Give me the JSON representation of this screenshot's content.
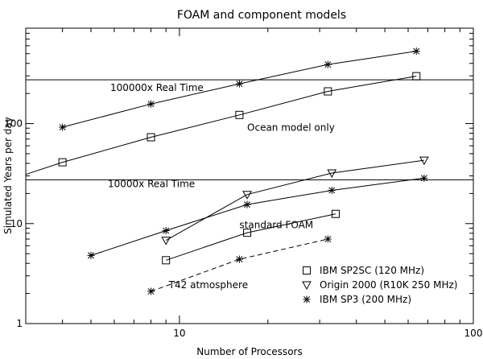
{
  "chart_data": {
    "type": "line",
    "title": "FOAM and component models",
    "xlabel": "Number of Processors",
    "ylabel": "Simulated Years per day",
    "xscale": "log",
    "yscale": "log",
    "xlim": [
      3,
      100
    ],
    "ylim": [
      1,
      900
    ],
    "x_ticks": [
      10,
      100
    ],
    "x_tick_labels": [
      "10",
      "100"
    ],
    "y_ticks": [
      1,
      10,
      100
    ],
    "y_tick_labels": [
      "1",
      "10",
      "100"
    ],
    "grid": false,
    "legend_position": "bottom-right",
    "legend": [
      {
        "label": "IBM SP2SC (120 MHz)",
        "marker": "square"
      },
      {
        "label": "Origin 2000 (R10K 250 MHz)",
        "marker": "triangle-down"
      },
      {
        "label": "IBM SP3 (200 MHz)",
        "marker": "asterisk"
      }
    ],
    "reference_lines": [
      {
        "y": 274,
        "label": "100000x Real Time"
      },
      {
        "y": 27.4,
        "label": "10000x Real Time"
      }
    ],
    "series": [
      {
        "marker": "asterisk",
        "style": "solid",
        "x": [
          4,
          8,
          16,
          32,
          64
        ],
        "y": [
          92,
          157,
          250,
          390,
          530
        ]
      },
      {
        "marker": "square",
        "style": "solid",
        "x": [
          4,
          8,
          16,
          32,
          64
        ],
        "y": [
          41,
          73,
          122,
          210,
          298
        ],
        "extend_left_to_y": 31
      },
      {
        "marker": "triangle-down",
        "style": "solid",
        "x": [
          9,
          17,
          33,
          68
        ],
        "y": [
          6.8,
          19.5,
          32,
          43
        ]
      },
      {
        "marker": "asterisk",
        "style": "solid",
        "x": [
          5,
          9,
          17,
          33,
          68
        ],
        "y": [
          4.8,
          8.5,
          15.5,
          21.5,
          28.5
        ]
      },
      {
        "marker": "square",
        "style": "solid",
        "x": [
          9,
          17,
          34
        ],
        "y": [
          4.3,
          8.1,
          12.5
        ]
      },
      {
        "marker": "asterisk",
        "style": "dashed",
        "x": [
          8,
          16,
          32
        ],
        "y": [
          2.1,
          4.4,
          7.0
        ]
      }
    ],
    "annotations": [
      {
        "text": "Ocean model only",
        "x": 17,
        "y": 85
      },
      {
        "text": "standard FOAM",
        "x": 16,
        "y": 9.0
      },
      {
        "text": "T42 atmosphere",
        "x": 9.2,
        "y": 2.25
      }
    ]
  }
}
